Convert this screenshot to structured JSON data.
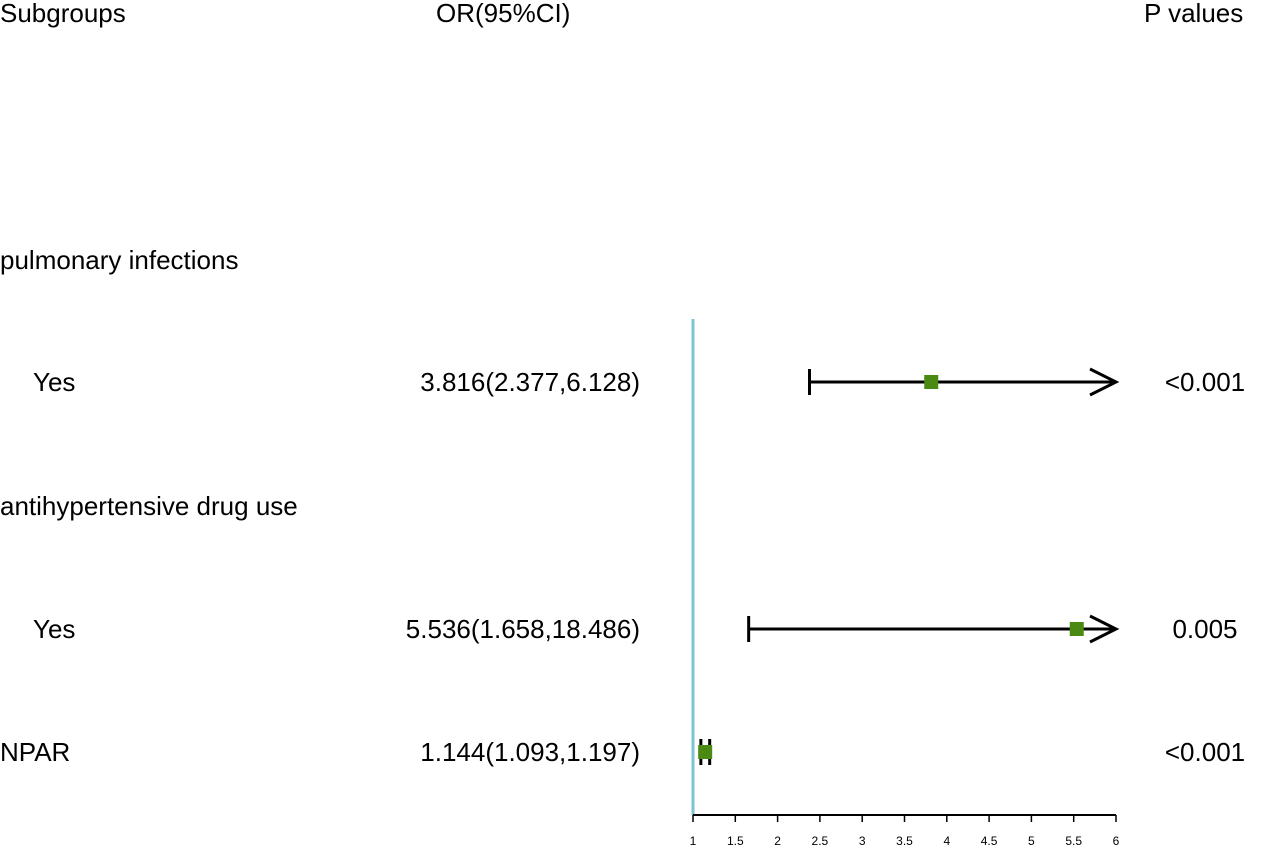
{
  "chart_data": {
    "type": "forest",
    "headers": {
      "subgroups": "Subgroups",
      "or_ci": "OR(95%CI)",
      "p_values": "P values"
    },
    "rows": [
      {
        "label": "pulmonary infections",
        "indent": false,
        "is_header": true,
        "or_text": "",
        "p_text": ""
      },
      {
        "label": "Yes",
        "indent": true,
        "is_header": false,
        "or": 3.816,
        "lower": 2.377,
        "upper": 6.128,
        "or_text": "3.816(2.377,6.128)",
        "p_text": "<0.001",
        "arrow": true
      },
      {
        "label": "antihypertensive drug use",
        "indent": false,
        "is_header": true,
        "or_text": "",
        "p_text": ""
      },
      {
        "label": "Yes",
        "indent": true,
        "is_header": false,
        "or": 5.536,
        "lower": 1.658,
        "upper": 18.486,
        "or_text": "5.536(1.658,18.486)",
        "p_text": "0.005",
        "arrow": true
      },
      {
        "label": "NPAR",
        "indent": false,
        "is_header": false,
        "or": 1.144,
        "lower": 1.093,
        "upper": 1.197,
        "or_text": "1.144(1.093,1.197)",
        "p_text": "<0.001",
        "arrow": false
      }
    ],
    "xlim": [
      1,
      6
    ],
    "x_ticks": [
      1,
      1.5,
      2,
      2.5,
      3,
      3.5,
      4,
      4.5,
      5,
      5.5,
      6
    ],
    "x_tick_labels": [
      "1",
      "1.5",
      "2",
      "2.5",
      "3",
      "3.5",
      "4",
      "4.5",
      "5",
      "5.5",
      "6"
    ],
    "reference_line": 1,
    "colors": {
      "point": "#4a8a12",
      "reference": "#7ec4d4",
      "ci_line": "#000000"
    }
  }
}
